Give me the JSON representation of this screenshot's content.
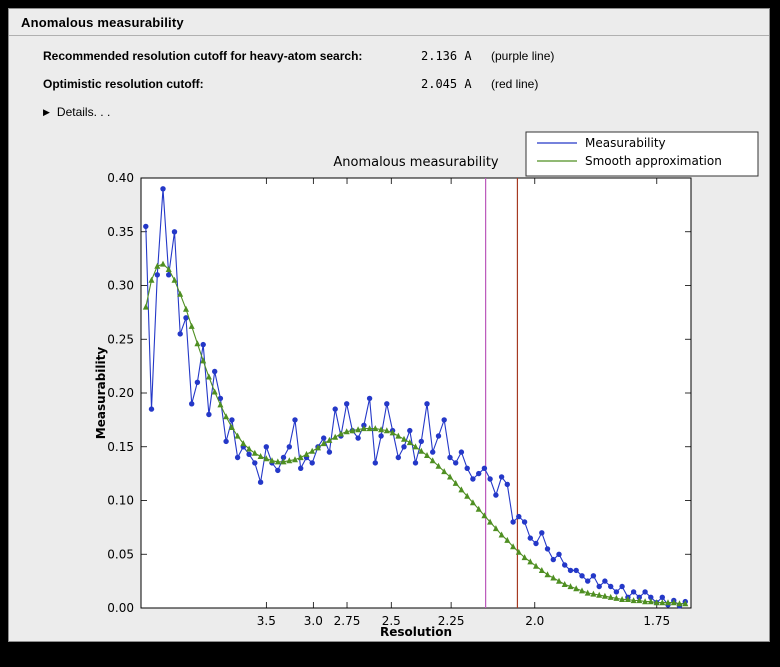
{
  "window": {
    "title": "Anomalous measurability"
  },
  "summary": {
    "rows": [
      {
        "label": "Recommended resolution cutoff for heavy-atom search:",
        "value": "2.136 A",
        "note": "(purple line)"
      },
      {
        "label": "Optimistic resolution cutoff:",
        "value": "2.045 A",
        "note": "(red line)"
      }
    ],
    "details_label": "Details. . ."
  },
  "chart_data": {
    "type": "line",
    "title": "Anomalous measurability",
    "xlabel": "Resolution",
    "ylabel": "Measurability",
    "x_axis_note": "x axis linear in 1/d^2; tick labels show resolution d in Angstrom decreasing to the right",
    "x_range": [
      0.003,
      0.348
    ],
    "ylim": [
      0.0,
      0.4
    ],
    "y_tick_step": 0.05,
    "x_ticks": [
      {
        "label": "3.5",
        "d": 3.5
      },
      {
        "label": "3.0",
        "d": 3.0
      },
      {
        "label": "2.75",
        "d": 2.75
      },
      {
        "label": "2.5",
        "d": 2.5
      },
      {
        "label": "2.25",
        "d": 2.25
      },
      {
        "label": "2.0",
        "d": 2.0
      },
      {
        "label": "1.75",
        "d": 1.75
      }
    ],
    "x_start": 0.006,
    "x_step": 0.0036,
    "series": [
      {
        "name": "Measurability",
        "color": "#2438c8",
        "marker": "circle",
        "values": [
          0.355,
          0.185,
          0.31,
          0.39,
          0.31,
          0.35,
          0.255,
          0.27,
          0.19,
          0.21,
          0.245,
          0.18,
          0.22,
          0.195,
          0.155,
          0.175,
          0.14,
          0.15,
          0.143,
          0.135,
          0.117,
          0.15,
          0.135,
          0.128,
          0.14,
          0.15,
          0.175,
          0.13,
          0.14,
          0.135,
          0.15,
          0.158,
          0.145,
          0.185,
          0.16,
          0.19,
          0.165,
          0.158,
          0.17,
          0.195,
          0.135,
          0.16,
          0.19,
          0.165,
          0.14,
          0.15,
          0.165,
          0.135,
          0.155,
          0.19,
          0.145,
          0.16,
          0.175,
          0.14,
          0.135,
          0.145,
          0.13,
          0.12,
          0.125,
          0.13,
          0.12,
          0.105,
          0.122,
          0.115,
          0.08,
          0.085,
          0.08,
          0.065,
          0.06,
          0.07,
          0.055,
          0.045,
          0.05,
          0.04,
          0.035,
          0.035,
          0.03,
          0.025,
          0.03,
          0.02,
          0.025,
          0.02,
          0.015,
          0.02,
          0.01,
          0.015,
          0.01,
          0.015,
          0.01,
          0.005,
          0.01,
          0.003,
          0.007,
          0.002,
          0.006
        ]
      },
      {
        "name": "Smooth approximation",
        "color": "#4f8f22",
        "marker": "triangle",
        "values": [
          0.28,
          0.305,
          0.318,
          0.32,
          0.315,
          0.305,
          0.292,
          0.278,
          0.262,
          0.246,
          0.23,
          0.215,
          0.201,
          0.189,
          0.178,
          0.168,
          0.16,
          0.153,
          0.148,
          0.144,
          0.141,
          0.139,
          0.137,
          0.136,
          0.136,
          0.137,
          0.138,
          0.14,
          0.143,
          0.146,
          0.149,
          0.153,
          0.156,
          0.159,
          0.162,
          0.164,
          0.165,
          0.166,
          0.167,
          0.167,
          0.167,
          0.166,
          0.165,
          0.163,
          0.16,
          0.157,
          0.154,
          0.15,
          0.146,
          0.142,
          0.137,
          0.132,
          0.127,
          0.122,
          0.116,
          0.11,
          0.104,
          0.098,
          0.092,
          0.086,
          0.08,
          0.074,
          0.068,
          0.063,
          0.057,
          0.052,
          0.047,
          0.043,
          0.039,
          0.035,
          0.031,
          0.028,
          0.025,
          0.022,
          0.02,
          0.018,
          0.016,
          0.014,
          0.013,
          0.012,
          0.011,
          0.01,
          0.009,
          0.008,
          0.008,
          0.007,
          0.007,
          0.006,
          0.006,
          0.005,
          0.005,
          0.005,
          0.005,
          0.004,
          0.004
        ]
      }
    ],
    "vlines": [
      {
        "name": "recommended-cutoff",
        "resolution_A": 2.136,
        "color": "#bb58bb",
        "note": "purple line"
      },
      {
        "name": "optimistic-cutoff",
        "resolution_A": 2.045,
        "color": "#a63a22",
        "note": "red line"
      }
    ],
    "legend_position": "upper right, outside plot"
  }
}
